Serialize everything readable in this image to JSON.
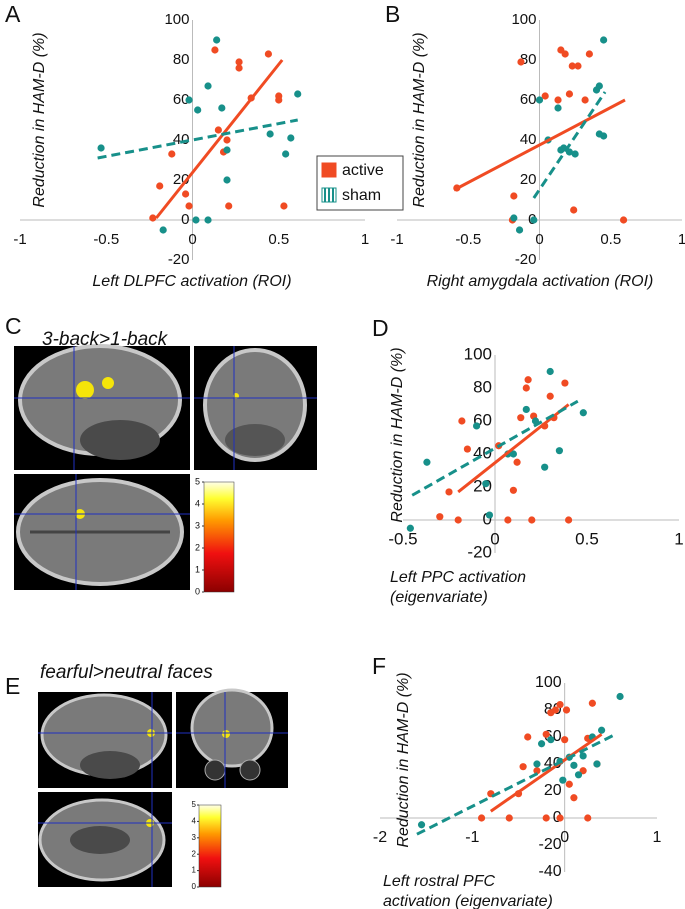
{
  "chart_data": [
    {
      "type": "scatter",
      "panel": "A",
      "xlabel": [
        "Left DLPFC activation (ROI)"
      ],
      "ylabel": "Reduction in HAM-D (%)",
      "xlim": [
        -1,
        1
      ],
      "ylim": [
        -20,
        100
      ],
      "xticks": [
        -1,
        -0.5,
        0,
        0.5,
        1
      ],
      "yticks": [
        -20,
        0,
        20,
        40,
        60,
        80,
        100
      ],
      "legend": true,
      "series": [
        {
          "name": "active",
          "color": "#f04b23",
          "line_style": "solid",
          "x": [
            -0.23,
            -0.19,
            -0.12,
            -0.04,
            -0.02,
            0.13,
            0.15,
            0.18,
            0.2,
            0.21,
            0.27,
            0.27,
            0.34,
            0.44,
            0.5,
            0.5,
            0.53
          ],
          "values": [
            1,
            17,
            33,
            13,
            7,
            85,
            45,
            34,
            40,
            7,
            79,
            76,
            61,
            83,
            62,
            60,
            7
          ],
          "fit": {
            "x": [
              -0.21,
              0.52
            ],
            "values": [
              1,
              80
            ]
          }
        },
        {
          "name": "sham",
          "color": "#17908a",
          "line_style": "dashed",
          "x": [
            -0.53,
            -0.17,
            -0.02,
            0.03,
            0.02,
            0.09,
            0.09,
            0.14,
            0.17,
            0.2,
            0.2,
            0.45,
            0.54,
            0.57,
            0.61
          ],
          "values": [
            36,
            -5,
            60,
            55,
            0,
            67,
            0,
            90,
            56,
            35,
            20,
            43,
            33,
            41,
            63
          ],
          "fit": {
            "x": [
              -0.55,
              0.61
            ],
            "values": [
              31,
              50
            ]
          }
        }
      ]
    },
    {
      "type": "scatter",
      "panel": "B",
      "xlabel": [
        "Right amygdala activation (ROI)"
      ],
      "ylabel": "Reduction in HAM-D (%)",
      "xlim": [
        -1,
        1
      ],
      "ylim": [
        -20,
        100
      ],
      "xticks": [
        -1,
        -0.5,
        0,
        0.5,
        1
      ],
      "yticks": [
        -20,
        0,
        20,
        40,
        60,
        80,
        100
      ],
      "legend": false,
      "series": [
        {
          "color": "#f04b23",
          "line_style": "solid",
          "x": [
            -0.58,
            -0.18,
            -0.13,
            -0.19,
            0.04,
            0.13,
            0.15,
            0.18,
            0.21,
            0.23,
            0.27,
            0.24,
            0.32,
            0.35,
            0.59
          ],
          "values": [
            16,
            12,
            79,
            0,
            62,
            60,
            85,
            83,
            63,
            77,
            77,
            5,
            60,
            83,
            0
          ],
          "fit": {
            "x": [
              -0.6,
              0.6
            ],
            "values": [
              15,
              60
            ]
          }
        },
        {
          "color": "#17908a",
          "line_style": "dashed",
          "x": [
            -0.18,
            -0.14,
            -0.04,
            0,
            0.06,
            0.13,
            0.15,
            0.17,
            0.21,
            0.25,
            0.4,
            0.42,
            0.42,
            0.45,
            0.45
          ],
          "values": [
            1,
            -5,
            0,
            60,
            40,
            56,
            35,
            36,
            34,
            33,
            65,
            67,
            43,
            90,
            42
          ],
          "fit": {
            "x": [
              -0.04,
              0.46
            ],
            "values": [
              11,
              64
            ]
          }
        }
      ]
    },
    {
      "type": "scatter",
      "panel": "D",
      "xlabel": [
        "Left PPC activation",
        "(eigenvariate)"
      ],
      "ylabel": "Reduction in HAM-D (%)",
      "xlim": [
        -0.5,
        1
      ],
      "ylim": [
        -20,
        100
      ],
      "xticks": [
        -0.5,
        0,
        0.5,
        1
      ],
      "yticks": [
        -20,
        0,
        20,
        40,
        60,
        80,
        100
      ],
      "legend": false,
      "series": [
        {
          "color": "#f04b23",
          "line_style": "solid",
          "x": [
            -0.3,
            -0.25,
            -0.2,
            -0.18,
            -0.15,
            0.02,
            0.07,
            0.1,
            0.12,
            0.14,
            0.17,
            0.18,
            0.21,
            0.2,
            0.27,
            0.3,
            0.38,
            0.32,
            0.4
          ],
          "values": [
            2,
            17,
            0,
            60,
            43,
            45,
            0,
            18,
            35,
            62,
            80,
            85,
            63,
            0,
            57,
            75,
            83,
            62,
            0
          ],
          "fit": {
            "x": [
              -0.2,
              0.4
            ],
            "values": [
              17,
              70
            ]
          }
        },
        {
          "color": "#17908a",
          "line_style": "dashed",
          "x": [
            -0.46,
            -0.37,
            -0.1,
            -0.05,
            -0.03,
            0.07,
            0.1,
            0.17,
            0.22,
            0.27,
            0.3,
            0.35,
            0.48
          ],
          "values": [
            -5,
            35,
            57,
            22,
            3,
            40,
            40,
            67,
            60,
            32,
            90,
            42,
            65
          ],
          "fit": {
            "x": [
              -0.45,
              0.45
            ],
            "values": [
              15,
              72
            ]
          }
        }
      ]
    },
    {
      "type": "scatter",
      "panel": "F",
      "xlabel": [
        "Left rostral PFC",
        "activation (eigenvariate)"
      ],
      "ylabel": "Reduction in HAM-D (%)",
      "xlim": [
        -2,
        1
      ],
      "ylim": [
        -40,
        100
      ],
      "xticks": [
        -2,
        -1,
        0,
        1
      ],
      "yticks": [
        -40,
        -20,
        0,
        20,
        40,
        60,
        80,
        100
      ],
      "legend": false,
      "series": [
        {
          "color": "#f04b23",
          "line_style": "solid",
          "x": [
            -0.9,
            -0.8,
            -0.6,
            -0.5,
            -0.45,
            -0.4,
            -0.3,
            -0.2,
            -0.15,
            -0.2,
            -0.1,
            -0.05,
            0,
            0.05,
            0.1,
            -0.05,
            0.2,
            0.25,
            0.3,
            0.25,
            0.35,
            0.02
          ],
          "values": [
            0,
            18,
            0,
            18,
            38,
            60,
            35,
            62,
            78,
            0,
            80,
            84,
            58,
            25,
            15,
            0,
            35,
            59,
            85,
            0,
            40,
            80
          ],
          "fit": {
            "x": [
              -0.8,
              0.4
            ],
            "values": [
              5,
              62
            ]
          }
        },
        {
          "color": "#17908a",
          "line_style": "dashed",
          "x": [
            -1.55,
            -0.3,
            -0.25,
            -0.15,
            -0.05,
            0.05,
            0.1,
            0.15,
            0.2,
            0.3,
            0.4,
            0.6,
            0.35,
            -0.02
          ],
          "values": [
            -5,
            40,
            55,
            58,
            42,
            45,
            39,
            32,
            46,
            60,
            65,
            90,
            40,
            28
          ],
          "fit": {
            "x": [
              -1.6,
              0.55
            ],
            "values": [
              -12,
              62
            ]
          }
        }
      ]
    }
  ],
  "images": [
    {
      "panel": "C",
      "caption": "3-back>1-back",
      "colorbar_ticks": [
        0,
        1,
        2,
        3,
        4,
        5
      ]
    },
    {
      "panel": "E",
      "caption": "fearful>neutral faces",
      "colorbar_ticks": [
        0,
        1,
        2,
        3,
        4,
        5
      ]
    }
  ]
}
